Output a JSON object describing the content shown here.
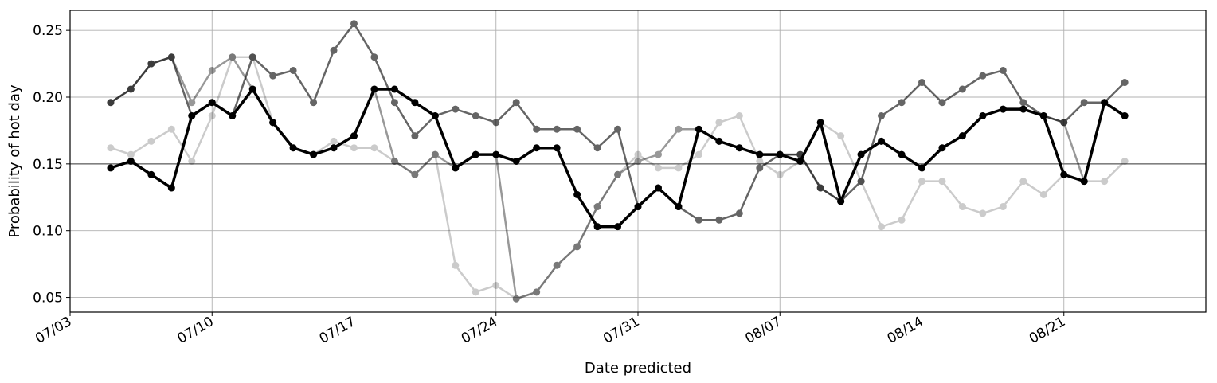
{
  "chart_data": {
    "type": "line",
    "title": "",
    "xlabel": "Date predicted",
    "ylabel": "Probability of hot day",
    "x_axis": {
      "type": "date",
      "range": [
        "2024-07-03",
        "2024-08-28"
      ],
      "ticks": [
        {
          "date": "2024-07-03",
          "label": "07/03"
        },
        {
          "date": "2024-07-10",
          "label": "07/10"
        },
        {
          "date": "2024-07-17",
          "label": "07/17"
        },
        {
          "date": "2024-07-24",
          "label": "07/24"
        },
        {
          "date": "2024-07-31",
          "label": "07/31"
        },
        {
          "date": "2024-08-07",
          "label": "08/07"
        },
        {
          "date": "2024-08-14",
          "label": "08/14"
        },
        {
          "date": "2024-08-21",
          "label": "08/21"
        }
      ],
      "tick_label_rotation_deg": 30
    },
    "y_axis": {
      "range": [
        0.039,
        0.265
      ],
      "ticks": [
        {
          "value": 0.05,
          "label": "0.05"
        },
        {
          "value": 0.1,
          "label": "0.10"
        },
        {
          "value": 0.15,
          "label": "0.15"
        },
        {
          "value": 0.2,
          "label": "0.20"
        },
        {
          "value": 0.25,
          "label": "0.25"
        }
      ]
    },
    "grid": true,
    "legend": "none",
    "reference_line": {
      "y": 0.15,
      "color": "#808080"
    },
    "x_dates": [
      "2024-07-05",
      "2024-07-06",
      "2024-07-07",
      "2024-07-08",
      "2024-07-09",
      "2024-07-10",
      "2024-07-11",
      "2024-07-12",
      "2024-07-13",
      "2024-07-14",
      "2024-07-15",
      "2024-07-16",
      "2024-07-17",
      "2024-07-18",
      "2024-07-19",
      "2024-07-20",
      "2024-07-21",
      "2024-07-22",
      "2024-07-23",
      "2024-07-24",
      "2024-07-25",
      "2024-07-26",
      "2024-07-27",
      "2024-07-28",
      "2024-07-29",
      "2024-07-30",
      "2024-07-31",
      "2024-08-01",
      "2024-08-02",
      "2024-08-03",
      "2024-08-04",
      "2024-08-05",
      "2024-08-06",
      "2024-08-07",
      "2024-08-08",
      "2024-08-09",
      "2024-08-10",
      "2024-08-11",
      "2024-08-12",
      "2024-08-13",
      "2024-08-14",
      "2024-08-15",
      "2024-08-16",
      "2024-08-17",
      "2024-08-18",
      "2024-08-19",
      "2024-08-20",
      "2024-08-21",
      "2024-08-22",
      "2024-08-23",
      "2024-08-24"
    ],
    "series": [
      {
        "color": "#000000",
        "opacity": 0.2,
        "line_width": 2.5,
        "values": [
          0.162,
          0.157,
          0.167,
          0.176,
          0.152,
          0.186,
          0.23,
          0.23,
          0.181,
          0.162,
          0.157,
          0.167,
          0.162,
          0.162,
          0.152,
          0.142,
          0.157,
          0.074,
          0.054,
          0.059,
          0.049,
          0.054,
          0.074,
          0.088,
          0.118,
          0.142,
          0.157,
          0.147,
          0.147,
          0.157,
          0.181,
          0.186,
          0.152,
          0.142,
          0.152,
          0.181,
          0.171,
          0.137,
          0.103,
          0.108,
          0.137,
          0.137,
          0.118,
          0.113,
          0.118,
          0.137,
          0.127,
          0.142,
          0.137,
          0.137,
          0.152
        ]
      },
      {
        "color": "#000000",
        "opacity": 0.4,
        "line_width": 2.5,
        "values": [
          0.196,
          0.206,
          0.225,
          0.23,
          0.196,
          0.22,
          0.23,
          0.206,
          0.181,
          0.162,
          0.157,
          0.162,
          0.171,
          0.206,
          0.152,
          0.142,
          0.157,
          0.147,
          0.157,
          0.157,
          0.049,
          0.054,
          0.074,
          0.088,
          0.118,
          0.142,
          0.152,
          0.157,
          0.176,
          0.176,
          0.167,
          0.162,
          0.157,
          0.157,
          0.157,
          0.132,
          0.122,
          0.157,
          0.167,
          0.157,
          0.147,
          0.162,
          0.171,
          0.186,
          0.191,
          0.191,
          0.186,
          0.181,
          0.137,
          0.196,
          0.186
        ]
      },
      {
        "color": "#000000",
        "opacity": 0.6,
        "line_width": 2.5,
        "values": [
          0.196,
          0.206,
          0.225,
          0.23,
          0.186,
          0.196,
          0.186,
          0.23,
          0.216,
          0.22,
          0.196,
          0.235,
          0.255,
          0.23,
          0.196,
          0.171,
          0.186,
          0.191,
          0.186,
          0.181,
          0.196,
          0.176,
          0.176,
          0.176,
          0.162,
          0.176,
          0.118,
          0.132,
          0.118,
          0.108,
          0.108,
          0.113,
          0.147,
          0.157,
          0.157,
          0.132,
          0.122,
          0.137,
          0.186,
          0.196,
          0.211,
          0.196,
          0.206,
          0.216,
          0.22,
          0.196,
          0.186,
          0.181,
          0.196,
          0.196,
          0.211
        ]
      },
      {
        "color": "#000000",
        "opacity": 1.0,
        "line_width": 3.5,
        "values": [
          0.147,
          0.152,
          0.142,
          0.132,
          0.186,
          0.196,
          0.186,
          0.206,
          0.181,
          0.162,
          0.157,
          0.162,
          0.171,
          0.206,
          0.206,
          0.196,
          0.186,
          0.147,
          0.157,
          0.157,
          0.152,
          0.162,
          0.162,
          0.127,
          0.103,
          0.103,
          0.118,
          0.132,
          0.118,
          0.176,
          0.167,
          0.162,
          0.157,
          0.157,
          0.152,
          0.181,
          0.122,
          0.157,
          0.167,
          0.157,
          0.147,
          0.162,
          0.171,
          0.186,
          0.191,
          0.191,
          0.186,
          0.142,
          0.137,
          0.196,
          0.186
        ]
      }
    ]
  }
}
